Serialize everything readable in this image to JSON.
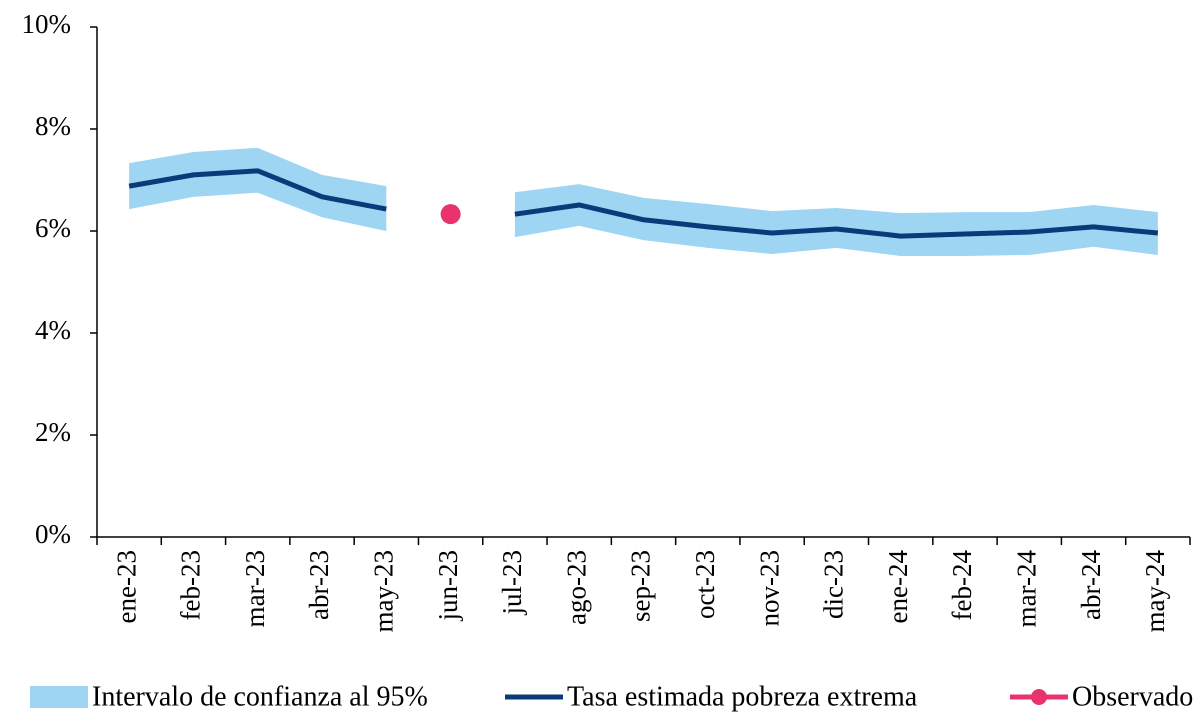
{
  "chart_data": {
    "type": "line",
    "categories": [
      "ene-23",
      "feb-23",
      "mar-23",
      "abr-23",
      "may-23",
      "jun-23",
      "jul-23",
      "ago-23",
      "sep-23",
      "oct-23",
      "nov-23",
      "dic-23",
      "ene-24",
      "feb-24",
      "mar-24",
      "abr-24",
      "may-24"
    ],
    "series": [
      {
        "name": "Intervalo de confianza al 95%",
        "color": "#9dd5f3",
        "kind": "band",
        "upper": [
          7.33,
          7.55,
          7.63,
          7.1,
          6.88,
          null,
          6.76,
          6.92,
          6.65,
          6.53,
          6.39,
          6.45,
          6.35,
          6.37,
          6.37,
          6.51,
          6.37
        ],
        "lower": [
          6.43,
          6.67,
          6.75,
          6.27,
          6.0,
          null,
          5.88,
          6.1,
          5.82,
          5.67,
          5.55,
          5.67,
          5.51,
          5.51,
          5.53,
          5.69,
          5.53
        ]
      },
      {
        "name": "Tasa estimada pobreza extrema",
        "color": "#0b3a7a",
        "kind": "line",
        "values": [
          6.88,
          7.1,
          7.18,
          6.67,
          6.43,
          null,
          6.33,
          6.51,
          6.22,
          6.08,
          5.96,
          6.04,
          5.9,
          5.94,
          5.98,
          6.08,
          5.96
        ]
      },
      {
        "name": "Observado",
        "color": "#e8336d",
        "kind": "marker",
        "values": [
          null,
          null,
          null,
          null,
          null,
          6.33,
          null,
          null,
          null,
          null,
          null,
          null,
          null,
          null,
          null,
          null,
          null
        ]
      }
    ],
    "ylim": [
      0,
      10
    ],
    "yticks": [
      {
        "value": 0,
        "label": "0%"
      },
      {
        "value": 2,
        "label": "2%"
      },
      {
        "value": 4,
        "label": "4%"
      },
      {
        "value": 6,
        "label": "6%"
      },
      {
        "value": 8,
        "label": "8%"
      },
      {
        "value": 10,
        "label": "10%"
      }
    ],
    "legend": "bottom"
  }
}
